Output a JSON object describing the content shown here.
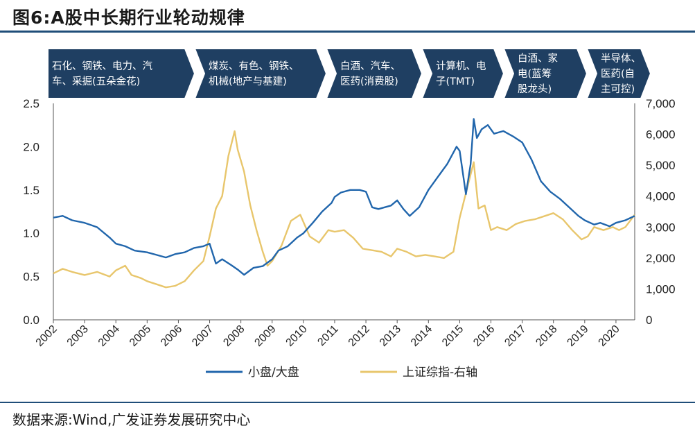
{
  "title": "图6:A股中长期行业轮动规律",
  "source": "数据来源:Wind,广发证券发展研究中心",
  "colors": {
    "line_ratio": "#2166ac",
    "line_index": "#e8c66c",
    "phase_bg": "#1f3f62",
    "rule": "#1f4e79"
  },
  "phases": [
    {
      "lines": [
        "石化、钢铁、电力、汽",
        "车、采掘(五朵金花)"
      ]
    },
    {
      "lines": [
        "煤炭、有色、钢铁、",
        "机械(地产与基建)"
      ]
    },
    {
      "lines": [
        "白酒、汽车、",
        "医药(消费股)"
      ]
    },
    {
      "lines": [
        "计算机、电",
        "子(TMT)"
      ]
    },
    {
      "lines": [
        "白酒、家",
        "电(蓝筹",
        "股龙头)"
      ]
    },
    {
      "lines": [
        "半导体、",
        "医药(自",
        "主可控)"
      ]
    }
  ],
  "chart_data": {
    "type": "line",
    "x_range": [
      2002,
      2020.6
    ],
    "y_left": {
      "range": [
        0,
        2.5
      ],
      "ticks": [
        "0.0",
        "0.5",
        "1.0",
        "1.5",
        "2.0",
        "2.5"
      ]
    },
    "y_right": {
      "range": [
        0,
        7000
      ],
      "ticks": [
        "0",
        "1,000",
        "2,000",
        "3,000",
        "4,000",
        "5,000",
        "6,000",
        "7,000"
      ]
    },
    "x_ticks": [
      "2002",
      "2003",
      "2004",
      "2005",
      "2006",
      "2007",
      "2008",
      "2009",
      "2010",
      "2011",
      "2012",
      "2013",
      "2014",
      "2015",
      "2016",
      "2017",
      "2018",
      "2019",
      "2020"
    ],
    "series": [
      {
        "name": "小盘/大盘",
        "axis": "left",
        "x": [
          2002.0,
          2002.3,
          2002.6,
          2003.0,
          2003.4,
          2003.8,
          2004.0,
          2004.3,
          2004.6,
          2005.0,
          2005.3,
          2005.6,
          2005.9,
          2006.2,
          2006.5,
          2006.8,
          2007.0,
          2007.2,
          2007.4,
          2007.7,
          2007.9,
          2008.1,
          2008.4,
          2008.7,
          2009.0,
          2009.2,
          2009.5,
          2009.8,
          2010.0,
          2010.3,
          2010.6,
          2010.9,
          2011.0,
          2011.2,
          2011.5,
          2011.8,
          2012.0,
          2012.2,
          2012.4,
          2012.6,
          2012.8,
          2013.0,
          2013.2,
          2013.4,
          2013.7,
          2014.0,
          2014.3,
          2014.6,
          2014.9,
          2015.0,
          2015.2,
          2015.35,
          2015.45,
          2015.55,
          2015.7,
          2015.9,
          2016.1,
          2016.4,
          2016.7,
          2017.0,
          2017.3,
          2017.6,
          2017.9,
          2018.2,
          2018.5,
          2018.8,
          2019.0,
          2019.3,
          2019.5,
          2019.8,
          2020.0,
          2020.3,
          2020.6
        ],
        "values": [
          1.18,
          1.2,
          1.15,
          1.12,
          1.07,
          0.95,
          0.88,
          0.85,
          0.8,
          0.78,
          0.75,
          0.72,
          0.76,
          0.78,
          0.83,
          0.85,
          0.88,
          0.65,
          0.7,
          0.63,
          0.58,
          0.52,
          0.6,
          0.62,
          0.7,
          0.8,
          0.85,
          0.95,
          1.0,
          1.12,
          1.25,
          1.35,
          1.42,
          1.47,
          1.5,
          1.5,
          1.48,
          1.3,
          1.28,
          1.3,
          1.32,
          1.38,
          1.28,
          1.2,
          1.3,
          1.5,
          1.65,
          1.8,
          2.0,
          1.95,
          1.45,
          1.8,
          2.32,
          2.1,
          2.2,
          2.25,
          2.15,
          2.18,
          2.12,
          2.05,
          1.85,
          1.6,
          1.48,
          1.4,
          1.3,
          1.2,
          1.15,
          1.1,
          1.12,
          1.08,
          1.12,
          1.15,
          1.2
        ]
      },
      {
        "name": "上证综指-右轴",
        "axis": "right",
        "x": [
          2002.0,
          2002.3,
          2002.6,
          2003.0,
          2003.4,
          2003.8,
          2004.0,
          2004.3,
          2004.5,
          2004.8,
          2005.0,
          2005.3,
          2005.6,
          2005.9,
          2006.2,
          2006.5,
          2006.8,
          2007.0,
          2007.2,
          2007.4,
          2007.6,
          2007.8,
          2007.9,
          2008.1,
          2008.3,
          2008.5,
          2008.7,
          2008.85,
          2009.0,
          2009.3,
          2009.6,
          2009.9,
          2010.2,
          2010.5,
          2010.8,
          2011.0,
          2011.3,
          2011.6,
          2011.9,
          2012.2,
          2012.5,
          2012.8,
          2013.0,
          2013.3,
          2013.6,
          2013.9,
          2014.2,
          2014.5,
          2014.8,
          2015.0,
          2015.3,
          2015.45,
          2015.6,
          2015.8,
          2016.0,
          2016.2,
          2016.5,
          2016.8,
          2017.1,
          2017.4,
          2017.7,
          2018.0,
          2018.3,
          2018.6,
          2018.9,
          2019.1,
          2019.3,
          2019.6,
          2019.9,
          2020.1,
          2020.3,
          2020.6
        ],
        "values": [
          1500,
          1650,
          1550,
          1450,
          1550,
          1400,
          1600,
          1750,
          1450,
          1350,
          1250,
          1150,
          1050,
          1100,
          1250,
          1600,
          1900,
          2700,
          3600,
          4000,
          5300,
          6100,
          5500,
          4800,
          3700,
          2900,
          2200,
          1750,
          1900,
          2400,
          3200,
          3400,
          2700,
          2500,
          2900,
          2850,
          2900,
          2650,
          2300,
          2250,
          2200,
          2050,
          2300,
          2200,
          2050,
          2100,
          2050,
          2000,
          2200,
          3300,
          4500,
          5100,
          3600,
          3700,
          2900,
          3000,
          2900,
          3100,
          3200,
          3250,
          3350,
          3450,
          3250,
          2900,
          2600,
          2700,
          3000,
          2900,
          3000,
          2900,
          3000,
          3400
        ]
      }
    ]
  },
  "legend": [
    {
      "label": "小盘/大盘"
    },
    {
      "label": "上证综指-右轴"
    }
  ]
}
